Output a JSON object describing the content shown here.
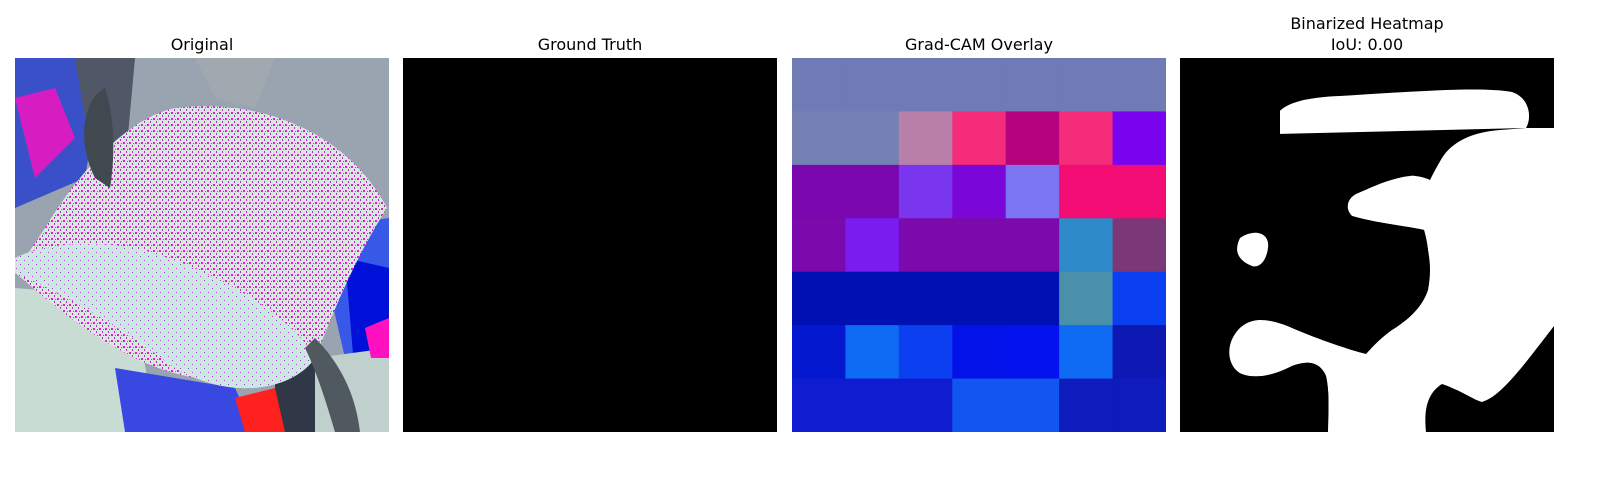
{
  "panels": [
    {
      "title": "Original",
      "icon": "leaf-photo-icon"
    },
    {
      "title": "Ground Truth",
      "icon": "empty-mask-icon"
    },
    {
      "title": "Grad-CAM Overlay",
      "icon": "heatmap-grid-icon",
      "grid_colors": [
        [
          "#6f7bb5",
          "#6f7bb5",
          "#6f7bb5",
          "#6f7bb5",
          "#6f7bb5",
          "#6f7bb5",
          "#6f7bb5"
        ],
        [
          "#7580b5",
          "#7580b5",
          "#b87fa9",
          "#f52c7a",
          "#b4037c",
          "#f52c7a",
          "#7a03ef"
        ],
        [
          "#7a07ad",
          "#7a07ad",
          "#7a35ee",
          "#7a07d8",
          "#7b75f2",
          "#f40c75",
          "#f40c75"
        ],
        [
          "#7a0aab",
          "#7a1cf0",
          "#7a0aab",
          "#7a0aab",
          "#7a0aab",
          "#2e8ac8",
          "#7b3878"
        ],
        [
          "#0010b3",
          "#0010b3",
          "#0010b3",
          "#0010b3",
          "#0010b3",
          "#4b90ab",
          "#093ff0"
        ],
        [
          "#0418d0",
          "#0f6bf3",
          "#0b3ff0",
          "#0312e8",
          "#0412f0",
          "#0f6bf3",
          "#0d18b3"
        ],
        [
          "#0f1ccf",
          "#0f1ccf",
          "#0f1ccf",
          "#1156f0",
          "#1156f0",
          "#0e1bbd",
          "#0e1bbd"
        ]
      ]
    },
    {
      "title": "Binarized Heatmap",
      "subtitle": "IoU: 0.00",
      "icon": "binary-mask-icon"
    }
  ],
  "colors": {
    "mask_black": "#000000",
    "mask_white": "#ffffff"
  }
}
